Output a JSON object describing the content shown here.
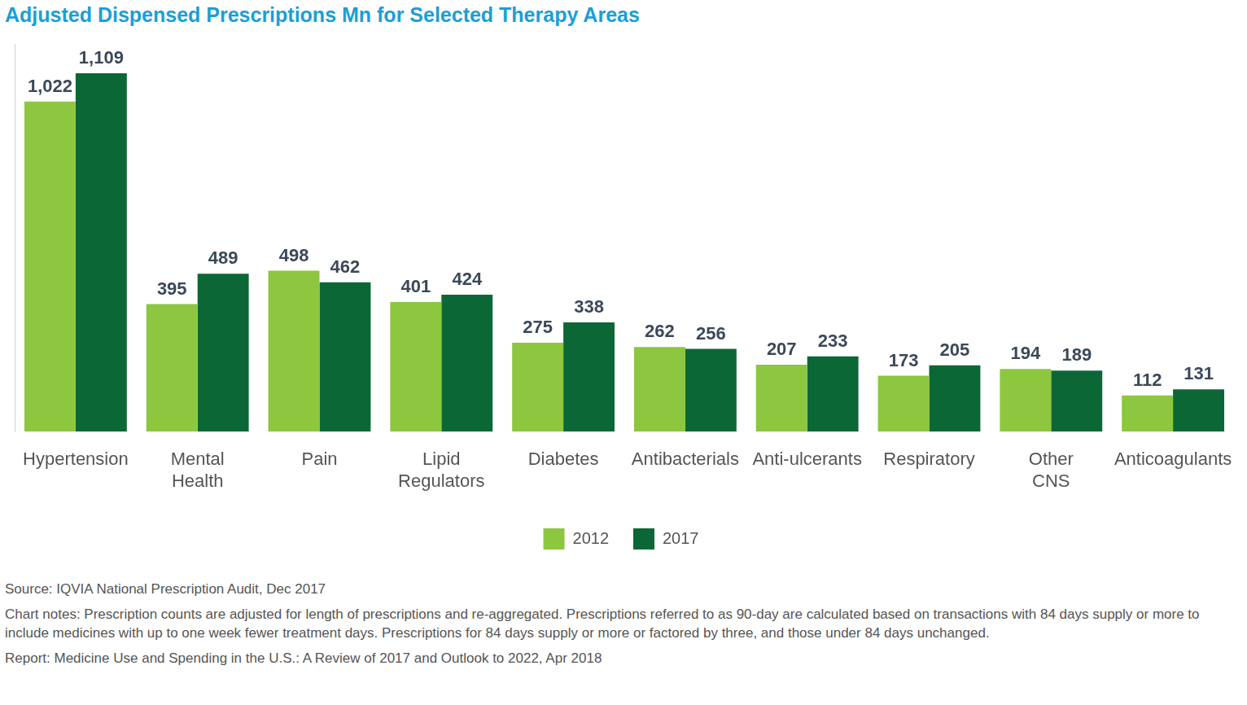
{
  "chart_data": {
    "type": "bar",
    "title": "Adjusted Dispensed Prescriptions Mn for Selected Therapy Areas",
    "categories": [
      "Hypertension",
      [
        "Mental",
        "Health"
      ],
      "Pain",
      [
        "Lipid",
        "Regulators"
      ],
      "Diabetes",
      "Antibacterials",
      "Anti-ulcerants",
      "Respiratory",
      [
        "Other",
        "CNS"
      ],
      "Anticoagulants"
    ],
    "series": [
      {
        "name": "2012",
        "color": "#8dc63f",
        "values": [
          1022,
          395,
          498,
          401,
          275,
          262,
          207,
          173,
          194,
          112
        ],
        "value_labels": [
          "1,022",
          "395",
          "498",
          "401",
          "275",
          "262",
          "207",
          "173",
          "194",
          "112"
        ]
      },
      {
        "name": "2017",
        "color": "#0b6836",
        "values": [
          1109,
          489,
          462,
          424,
          338,
          256,
          233,
          205,
          189,
          131
        ],
        "value_labels": [
          "1,109",
          "489",
          "462",
          "424",
          "338",
          "256",
          "233",
          "205",
          "189",
          "131"
        ]
      }
    ],
    "ylim": [
      0,
      1200
    ],
    "grid": false,
    "legend": "bottom",
    "data_labels": true,
    "tick_labels": "x",
    "annotations": [
      "Source: IQVIA National Prescription Audit, Dec 2017",
      "Chart notes: Prescription counts are adjusted for length of prescriptions and re-aggregated. Prescriptions referred to as 90-day are calculated based on transactions with 84 days supply or more to include medicines with up to one week fewer treatment days. Prescriptions for 84 days supply or more or factored by three, and those under 84 days unchanged.",
      "Report: Medicine Use and Spending in the U.S.: A Review of 2017 and Outlook to 2022, Apr 2018"
    ]
  }
}
